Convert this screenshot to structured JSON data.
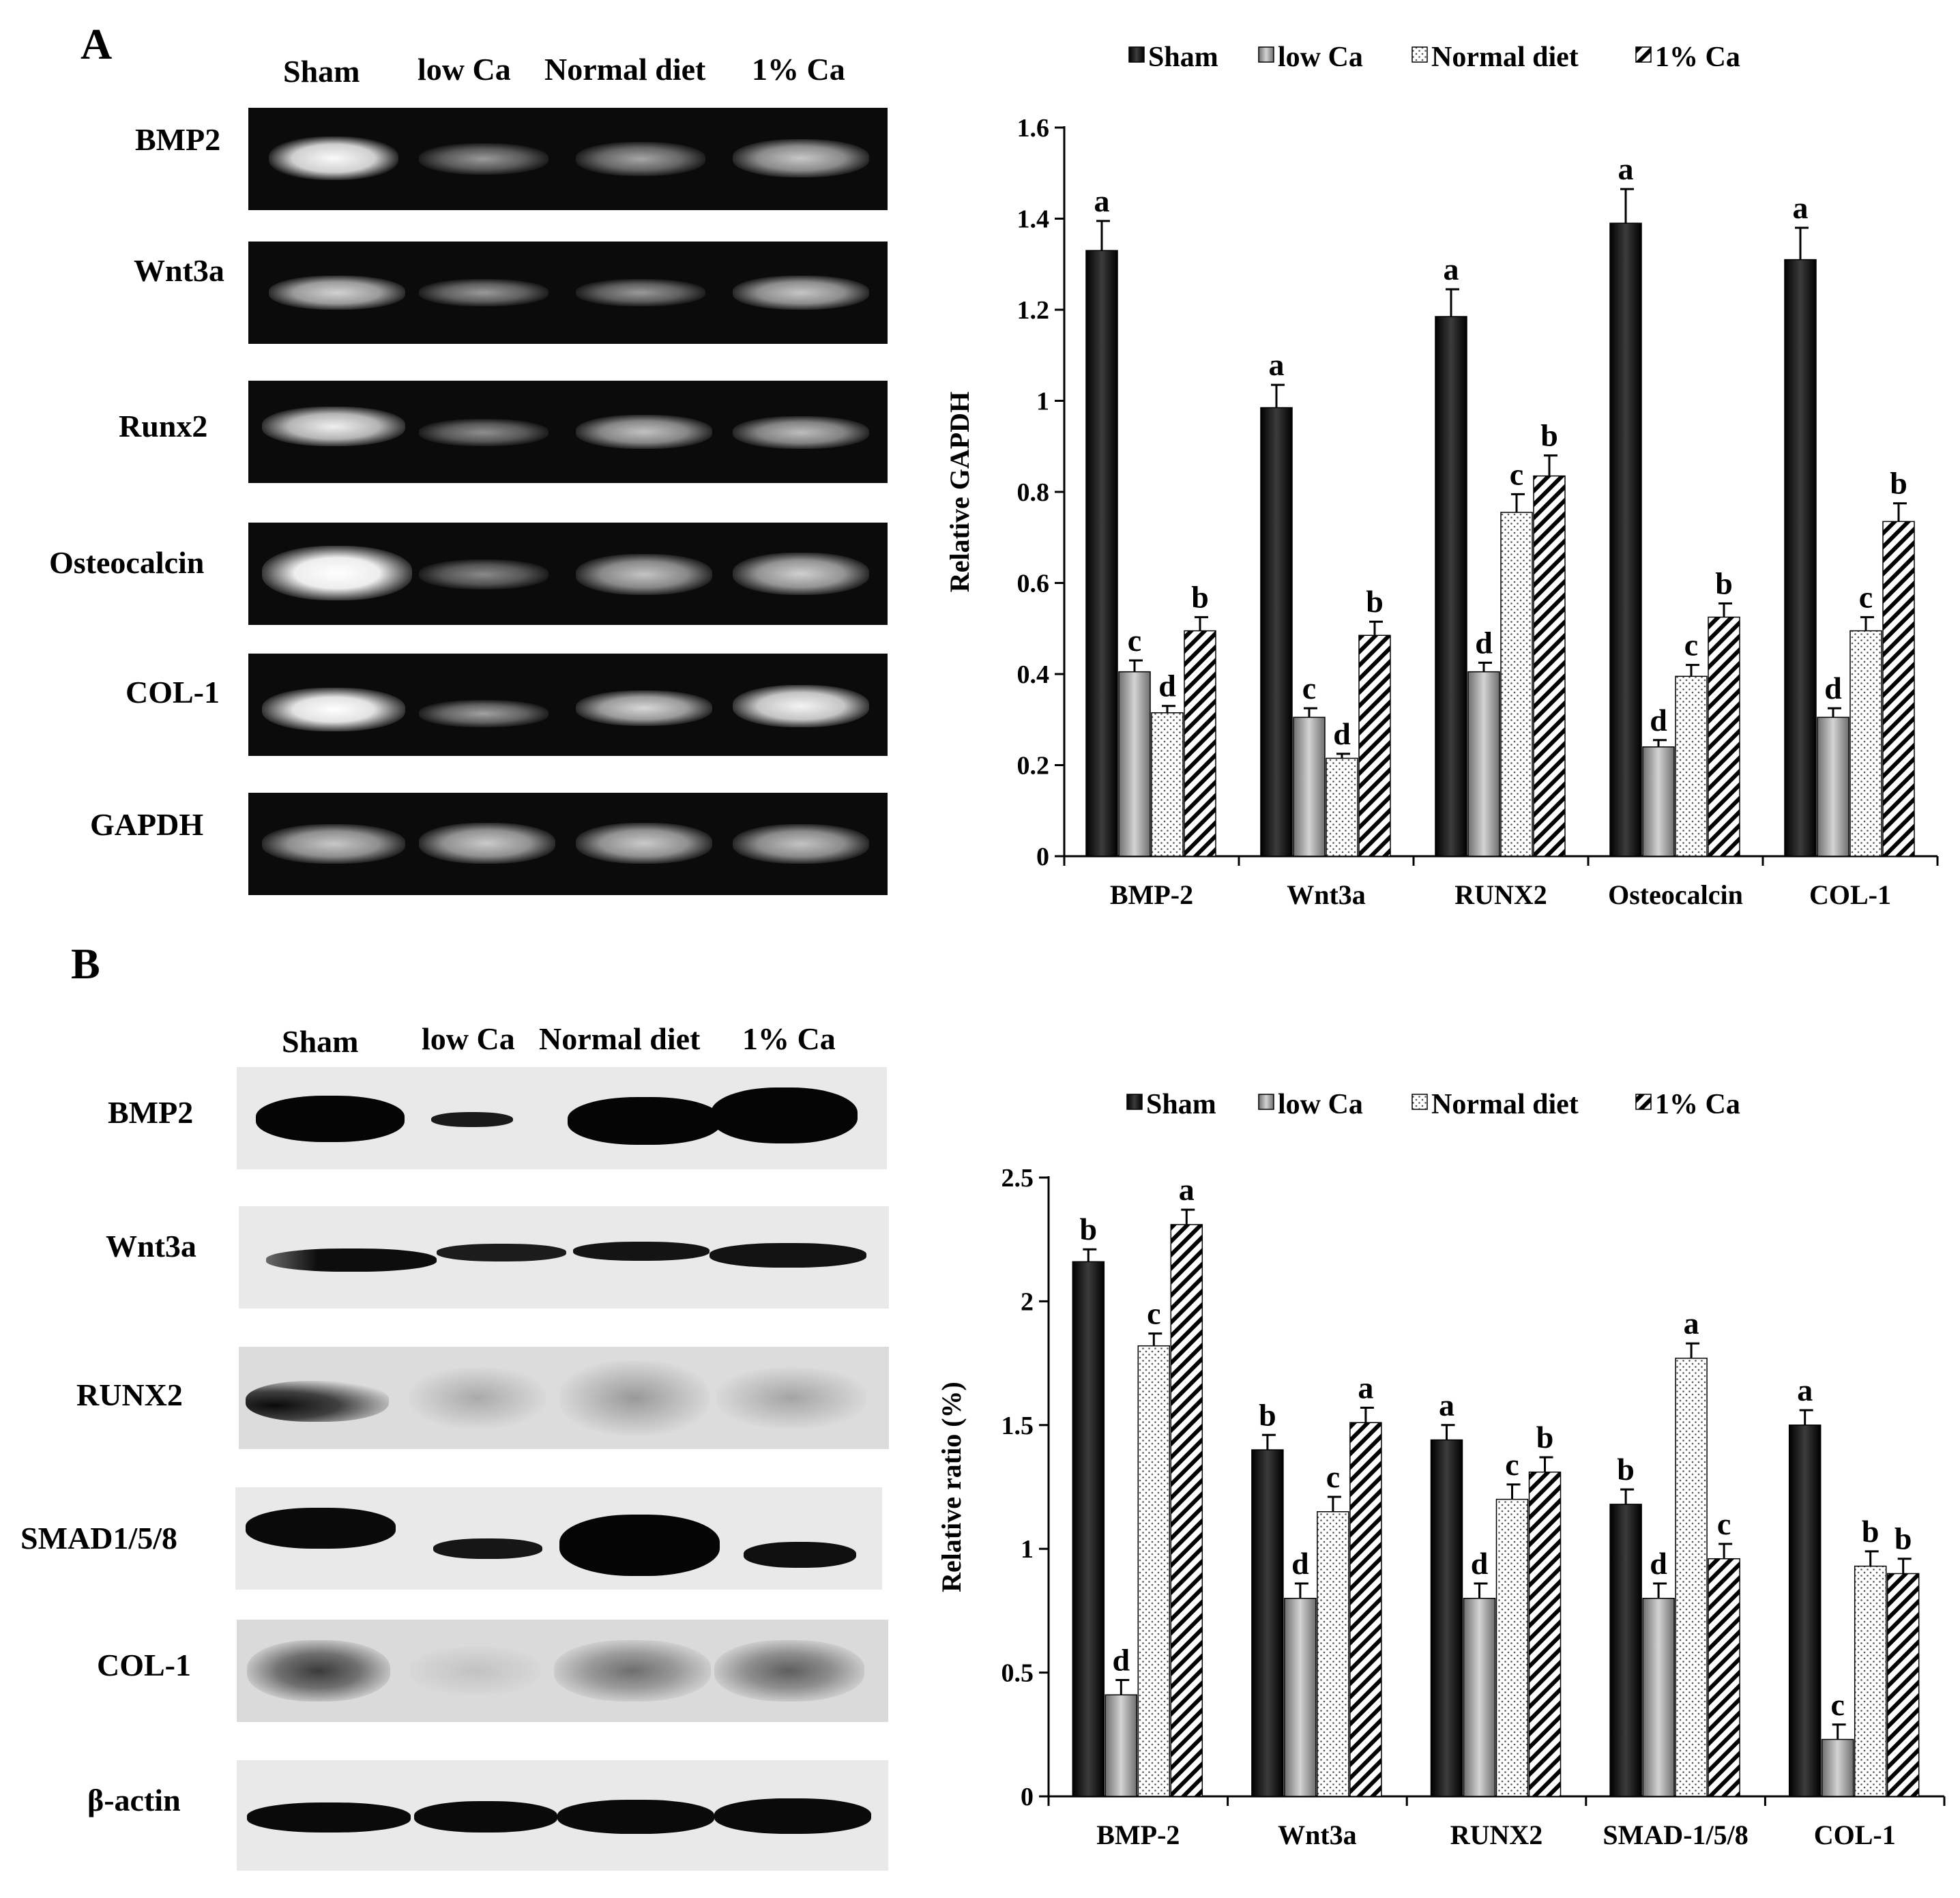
{
  "panel_a": {
    "letter": "A",
    "lanes": [
      "Sham",
      "low Ca",
      "Normal diet",
      "1% Ca"
    ],
    "rows": [
      "BMP2",
      "Wnt3a",
      "Runx2",
      "Osteocalcin",
      "COL-1",
      "GAPDH"
    ]
  },
  "panel_b": {
    "letter": "B",
    "lanes": [
      "Sham",
      "low Ca",
      "Normal diet",
      "1% Ca"
    ],
    "rows": [
      "BMP2",
      "Wnt3a",
      "RUNX2",
      "SMAD1/5/8",
      "COL-1",
      "β-actin"
    ]
  },
  "chart_data": [
    {
      "type": "bar",
      "title": "",
      "xlabel": "",
      "ylabel": "Relative GAPDH",
      "ylim": [
        0,
        1.6
      ],
      "yticks": [
        "0",
        "0.2",
        "0.4",
        "0.6",
        "0.8",
        "1",
        "1.2",
        "1.4",
        "1.6"
      ],
      "categories": [
        "BMP-2",
        "Wnt3a",
        "RUNX2",
        "Osteocalcin",
        "COL-1"
      ],
      "legend_position": "top",
      "grid": false,
      "series": [
        {
          "name": "Sham",
          "pattern": "solid",
          "color": "#000000",
          "values": [
            1.33,
            0.985,
            1.185,
            1.39,
            1.31
          ],
          "errors": [
            0.065,
            0.05,
            0.06,
            0.075,
            0.07
          ],
          "letters": [
            "a",
            "a",
            "a",
            "a",
            "a"
          ]
        },
        {
          "name": "low Ca",
          "pattern": "gray",
          "color": "#9a9a9a",
          "values": [
            0.405,
            0.305,
            0.405,
            0.24,
            0.305
          ],
          "errors": [
            0.025,
            0.02,
            0.02,
            0.015,
            0.02
          ],
          "letters": [
            "c",
            "c",
            "d",
            "d",
            "d"
          ]
        },
        {
          "name": "Normal diet",
          "pattern": "dots",
          "color": "#f2f2f2",
          "values": [
            0.315,
            0.215,
            0.755,
            0.395,
            0.495
          ],
          "errors": [
            0.015,
            0.01,
            0.04,
            0.025,
            0.03
          ],
          "letters": [
            "d",
            "d",
            "c",
            "c",
            "c"
          ]
        },
        {
          "name": "1% Ca",
          "pattern": "hatch",
          "color": "#000000",
          "values": [
            0.495,
            0.485,
            0.835,
            0.525,
            0.735
          ],
          "errors": [
            0.03,
            0.03,
            0.045,
            0.03,
            0.04
          ],
          "letters": [
            "b",
            "b",
            "b",
            "b",
            "b"
          ]
        }
      ]
    },
    {
      "type": "bar",
      "title": "",
      "xlabel": "",
      "ylabel": "Relative ratio (%)",
      "ylim": [
        0,
        2.5
      ],
      "yticks": [
        "0",
        "0.5",
        "1",
        "1.5",
        "2",
        "2.5"
      ],
      "categories": [
        "BMP-2",
        "Wnt3a",
        "RUNX2",
        "SMAD-1/5/8",
        "COL-1"
      ],
      "legend_position": "top",
      "grid": false,
      "series": [
        {
          "name": "Sham",
          "pattern": "solid",
          "color": "#000000",
          "values": [
            2.16,
            1.4,
            1.44,
            1.18,
            1.5
          ],
          "errors": [
            0.05,
            0.06,
            0.06,
            0.06,
            0.06
          ],
          "letters": [
            "b",
            "b",
            "a",
            "b",
            "a"
          ]
        },
        {
          "name": "low Ca",
          "pattern": "gray",
          "color": "#9a9a9a",
          "values": [
            0.41,
            0.8,
            0.8,
            0.8,
            0.23
          ],
          "errors": [
            0.06,
            0.06,
            0.06,
            0.06,
            0.06
          ],
          "letters": [
            "d",
            "d",
            "d",
            "d",
            "c"
          ]
        },
        {
          "name": "Normal diet",
          "pattern": "dots",
          "color": "#f2f2f2",
          "values": [
            1.82,
            1.15,
            1.2,
            1.77,
            0.93
          ],
          "errors": [
            0.05,
            0.06,
            0.06,
            0.06,
            0.06
          ],
          "letters": [
            "c",
            "c",
            "c",
            "a",
            "b"
          ]
        },
        {
          "name": "1% Ca",
          "pattern": "hatch",
          "color": "#000000",
          "values": [
            2.31,
            1.51,
            1.31,
            0.96,
            0.9
          ],
          "errors": [
            0.06,
            0.06,
            0.06,
            0.06,
            0.06
          ],
          "letters": [
            "a",
            "a",
            "b",
            "c",
            "b"
          ]
        }
      ]
    }
  ]
}
